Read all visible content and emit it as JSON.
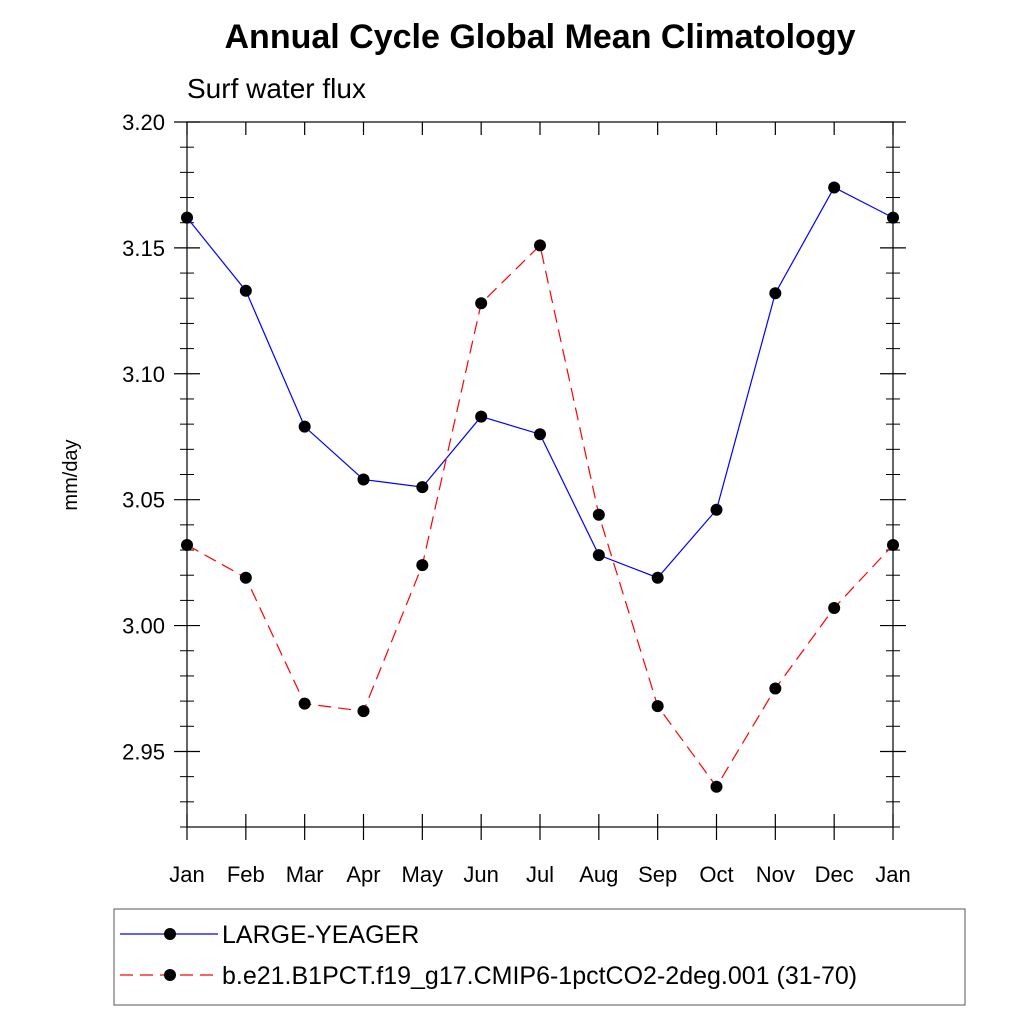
{
  "chart_data": {
    "type": "line",
    "title": "Annual Cycle Global Mean Climatology",
    "subtitle": "Surf water flux",
    "xlabel": "",
    "ylabel": "mm/day",
    "categories": [
      "Jan",
      "Feb",
      "Mar",
      "Apr",
      "May",
      "Jun",
      "Jul",
      "Aug",
      "Sep",
      "Oct",
      "Nov",
      "Dec",
      "Jan"
    ],
    "ylim": [
      2.92,
      3.2
    ],
    "yticks": [
      "3.20",
      "3.15",
      "3.10",
      "3.05",
      "3.00",
      "2.95"
    ],
    "ytick_values": [
      3.2,
      3.15,
      3.1,
      3.05,
      3.0,
      2.95
    ],
    "grid": false,
    "legend_position": "bottom",
    "series": [
      {
        "name": "LARGE-YEAGER",
        "color": "#0000ff",
        "dash": "solid",
        "marker": "filled-circle",
        "values": [
          3.162,
          3.133,
          3.079,
          3.058,
          3.055,
          3.083,
          3.076,
          3.028,
          3.019,
          3.046,
          3.132,
          3.174,
          3.162
        ]
      },
      {
        "name": "b.e21.B1PCT.f19_g17.CMIP6-1pctCO2-2deg.001 (31-70)",
        "color": "#ff0000",
        "dash": "dashed",
        "marker": "filled-circle",
        "values": [
          3.032,
          3.019,
          2.969,
          2.966,
          3.024,
          3.128,
          3.151,
          3.044,
          2.968,
          2.936,
          2.975,
          3.007,
          3.032
        ]
      }
    ]
  }
}
